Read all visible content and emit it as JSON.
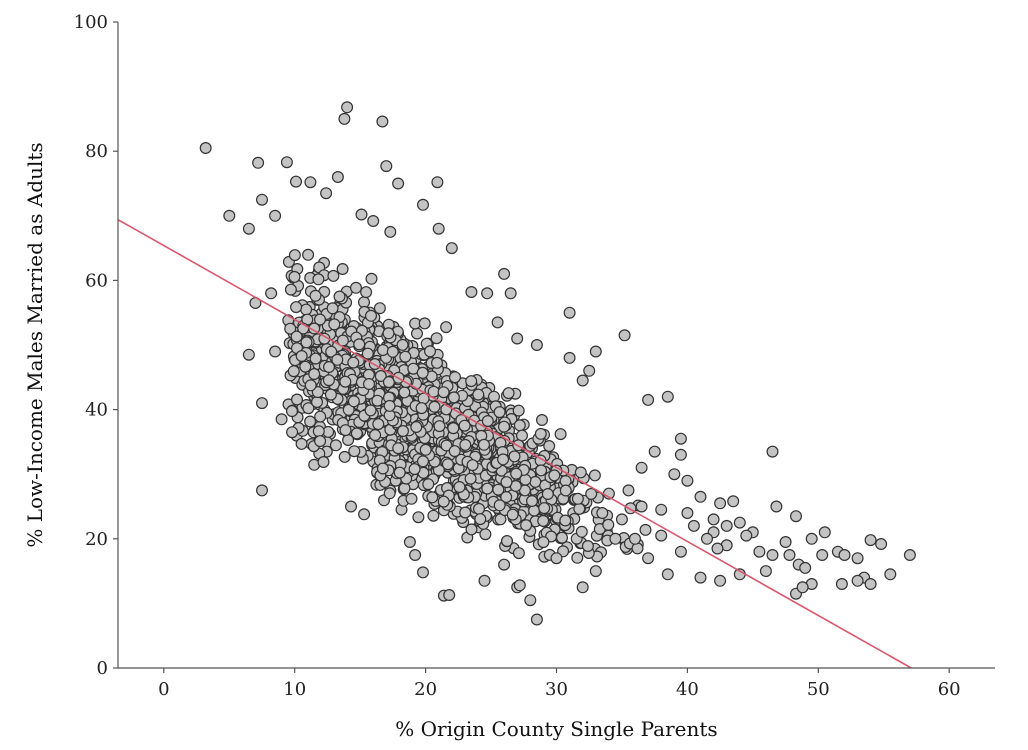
{
  "chart_data": {
    "type": "scatter",
    "title": "",
    "xlabel": "% Origin County Single Parents",
    "ylabel": "% Low-Income Males Married as Adults",
    "xlim": [
      -3.5,
      63.5
    ],
    "ylim": [
      0,
      100
    ],
    "xticks": [
      0,
      10,
      20,
      30,
      40,
      50,
      60
    ],
    "yticks": [
      0,
      20,
      40,
      60,
      80,
      100
    ],
    "grid": false,
    "legend": "none",
    "colors": {
      "marker_fill": "#c4c4c4",
      "marker_edge": "#333333",
      "fit_line": "#d9566b",
      "axis": "#555555"
    },
    "fit_line": {
      "x": [
        -3.5,
        57.1
      ],
      "y": [
        69.4,
        0
      ]
    },
    "points": [
      [
        3.2,
        80.5
      ],
      [
        7.2,
        78.2
      ],
      [
        9.4,
        78.3
      ],
      [
        14.0,
        86.8
      ],
      [
        13.8,
        85.0
      ],
      [
        16.7,
        84.6
      ],
      [
        17.0,
        77.7
      ],
      [
        17.9,
        75.0
      ],
      [
        20.9,
        75.2
      ],
      [
        19.8,
        71.7
      ],
      [
        21.0,
        68.0
      ],
      [
        5.0,
        70.0
      ],
      [
        6.5,
        68.0
      ],
      [
        7.5,
        72.5
      ],
      [
        8.5,
        70.0
      ],
      [
        11.2,
        75.2
      ],
      [
        10.1,
        75.3
      ],
      [
        12.4,
        73.5
      ],
      [
        13.3,
        76.0
      ],
      [
        15.1,
        70.2
      ],
      [
        16.0,
        69.2
      ],
      [
        17.3,
        67.5
      ],
      [
        22.0,
        65.0
      ],
      [
        6.5,
        48.5
      ],
      [
        7.0,
        56.5
      ],
      [
        8.2,
        58.0
      ],
      [
        7.5,
        41.0
      ],
      [
        7.5,
        27.5
      ],
      [
        9.0,
        38.5
      ],
      [
        9.8,
        36.5
      ],
      [
        8.5,
        49.0
      ],
      [
        18.8,
        19.5
      ],
      [
        19.2,
        17.5
      ],
      [
        19.8,
        14.8
      ],
      [
        21.4,
        11.2
      ],
      [
        21.8,
        11.3
      ],
      [
        24.5,
        13.5
      ],
      [
        27.0,
        12.5
      ],
      [
        27.2,
        12.8
      ],
      [
        28.0,
        10.5
      ],
      [
        28.5,
        7.5
      ],
      [
        26.0,
        16.0
      ],
      [
        30.0,
        17.0
      ],
      [
        32.0,
        12.5
      ],
      [
        33.0,
        15.0
      ],
      [
        15.3,
        23.8
      ],
      [
        14.3,
        25.0
      ],
      [
        26.0,
        61.0
      ],
      [
        26.5,
        58.0
      ],
      [
        23.5,
        58.2
      ],
      [
        24.7,
        58.0
      ],
      [
        25.5,
        53.5
      ],
      [
        28.5,
        50.0
      ],
      [
        31.0,
        55.0
      ],
      [
        31.0,
        48.0
      ],
      [
        33.0,
        49.0
      ],
      [
        35.2,
        51.5
      ],
      [
        27.0,
        51.0
      ],
      [
        32.5,
        46.0
      ],
      [
        32.0,
        44.5
      ],
      [
        37.0,
        41.5
      ],
      [
        38.5,
        42.0
      ],
      [
        39.5,
        35.5
      ],
      [
        37.5,
        33.5
      ],
      [
        39.0,
        30.0
      ],
      [
        40.0,
        29.0
      ],
      [
        39.5,
        33.0
      ],
      [
        36.5,
        31.0
      ],
      [
        41.0,
        26.5
      ],
      [
        42.5,
        25.5
      ],
      [
        43.5,
        25.8
      ],
      [
        40.5,
        22.0
      ],
      [
        42.0,
        21.0
      ],
      [
        44.0,
        22.5
      ],
      [
        45.0,
        21.0
      ],
      [
        43.0,
        19.0
      ],
      [
        45.5,
        18.0
      ],
      [
        46.5,
        17.5
      ],
      [
        46.5,
        33.5
      ],
      [
        46.8,
        25.0
      ],
      [
        48.3,
        23.5
      ],
      [
        49.5,
        20.0
      ],
      [
        50.5,
        21.0
      ],
      [
        47.5,
        19.5
      ],
      [
        47.8,
        17.5
      ],
      [
        48.5,
        16.0
      ],
      [
        49.0,
        15.5
      ],
      [
        49.5,
        13.0
      ],
      [
        48.3,
        11.5
      ],
      [
        48.8,
        12.5
      ],
      [
        51.5,
        18.0
      ],
      [
        52.0,
        17.5
      ],
      [
        51.8,
        13.0
      ],
      [
        50.3,
        17.5
      ],
      [
        53.0,
        17.0
      ],
      [
        53.5,
        14.0
      ],
      [
        53.0,
        13.5
      ],
      [
        54.0,
        13.0
      ],
      [
        54.0,
        19.8
      ],
      [
        54.8,
        19.2
      ],
      [
        55.5,
        14.5
      ],
      [
        57.0,
        17.5
      ],
      [
        46.0,
        15.0
      ],
      [
        44.0,
        14.5
      ],
      [
        42.5,
        13.5
      ],
      [
        41.0,
        14.0
      ],
      [
        38.5,
        14.5
      ],
      [
        39.5,
        18.0
      ],
      [
        36.0,
        20.0
      ],
      [
        37.0,
        17.0
      ],
      [
        38.0,
        20.5
      ],
      [
        35.0,
        23.0
      ],
      [
        34.5,
        20.0
      ],
      [
        33.5,
        24.0
      ],
      [
        34.0,
        27.0
      ],
      [
        35.5,
        27.5
      ],
      [
        36.5,
        25.0
      ],
      [
        38.0,
        24.5
      ],
      [
        40.0,
        24.0
      ],
      [
        42.0,
        23.0
      ],
      [
        43.0,
        22.0
      ],
      [
        44.5,
        20.5
      ],
      [
        41.5,
        20.0
      ],
      [
        42.3,
        18.5
      ]
    ]
  }
}
